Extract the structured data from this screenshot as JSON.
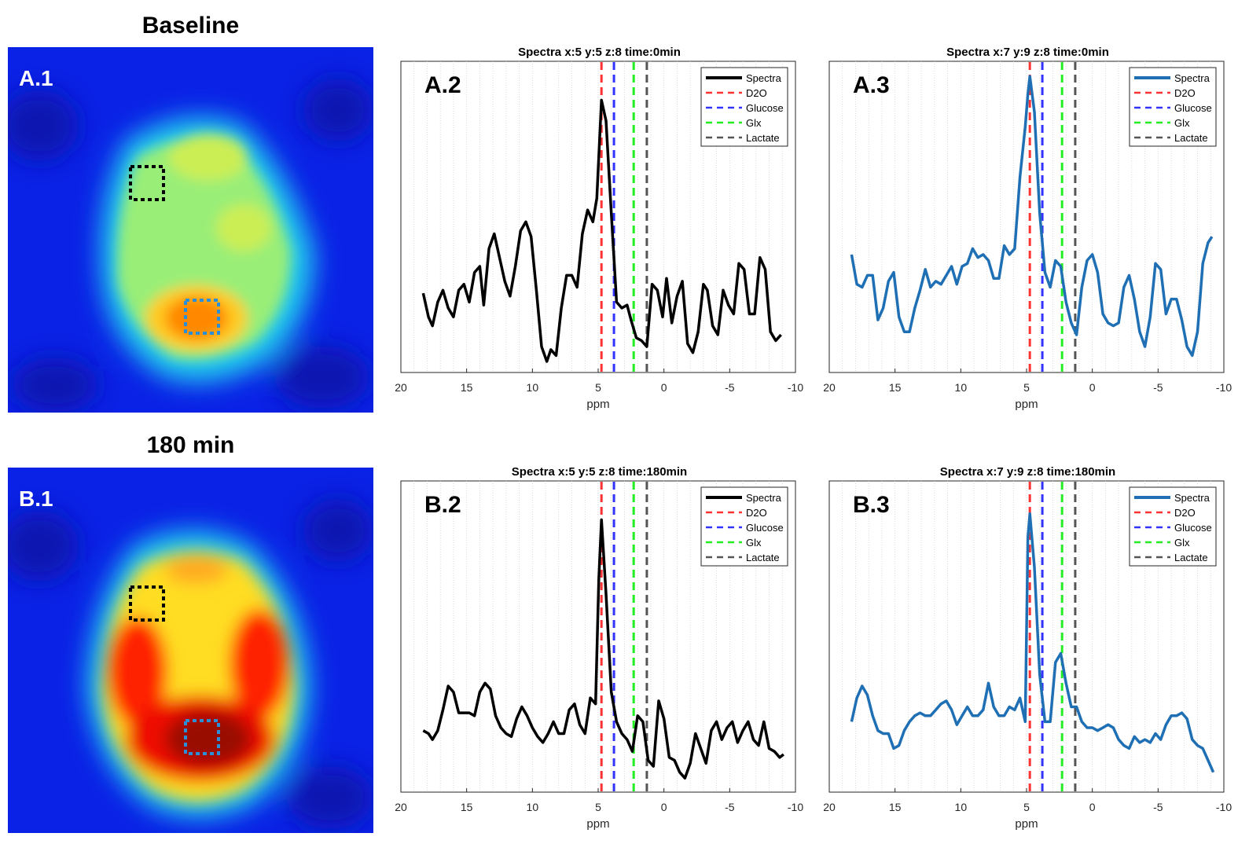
{
  "top_label": "Baseline",
  "bottom_label": "180 min",
  "maps": [
    {
      "panel": "A.1",
      "state": "baseline"
    },
    {
      "panel": "B.1",
      "state": "180min"
    }
  ],
  "colors": {
    "spectra_black": "#000000",
    "spectra_blue": "#1f6fb5",
    "d2o": "#ff3333",
    "glucose": "#3333ff",
    "glx": "#22ee22",
    "lactate": "#555555",
    "roi_black": "#000000",
    "roi_blue": "#2a8fd6"
  },
  "chart_data": [
    {
      "type": "line",
      "panel": "A.2",
      "title": "Spectra x:5 y:5 z:8 time:0min",
      "xlabel": "ppm",
      "ylabel": "",
      "xlim": [
        20,
        -10
      ],
      "xticks": [
        "20",
        "15",
        "10",
        "5",
        "0",
        "-5",
        "-10"
      ],
      "ylim": [
        0,
        1
      ],
      "legend": "top-right",
      "markers": [
        {
          "name": "D2O",
          "ppm": 4.75
        },
        {
          "name": "Glucose",
          "ppm": 3.8
        },
        {
          "name": "Glx",
          "ppm": 2.3
        },
        {
          "name": "Lactate",
          "ppm": 1.3
        }
      ],
      "series": [
        {
          "name": "Spectra",
          "color": "#000000",
          "x": [
            18.3,
            17.9,
            17.6,
            17.2,
            16.8,
            16.4,
            16.0,
            15.6,
            15.2,
            14.8,
            14.4,
            14.0,
            13.7,
            13.3,
            12.9,
            12.5,
            12.1,
            11.7,
            11.3,
            10.9,
            10.5,
            10.1,
            9.7,
            9.3,
            8.9,
            8.6,
            8.2,
            7.8,
            7.4,
            7.0,
            6.6,
            6.2,
            5.8,
            5.4,
            5.1,
            4.75,
            4.4,
            4.0,
            3.6,
            3.2,
            2.8,
            2.5,
            2.1,
            1.7,
            1.3,
            0.9,
            0.5,
            0.1,
            -0.2,
            -0.6,
            -1.0,
            -1.4,
            -1.8,
            -2.2,
            -2.6,
            -3.0,
            -3.3,
            -3.7,
            -4.1,
            -4.5,
            -4.9,
            -5.3,
            -5.7,
            -6.1,
            -6.5,
            -6.9,
            -7.3,
            -7.7,
            -8.1,
            -8.5,
            -8.9
          ],
          "y": [
            0.23,
            0.15,
            0.12,
            0.2,
            0.24,
            0.18,
            0.15,
            0.24,
            0.26,
            0.2,
            0.3,
            0.32,
            0.19,
            0.38,
            0.43,
            0.35,
            0.27,
            0.22,
            0.32,
            0.44,
            0.47,
            0.42,
            0.24,
            0.05,
            0.0,
            0.04,
            0.02,
            0.18,
            0.29,
            0.29,
            0.25,
            0.43,
            0.51,
            0.47,
            0.55,
            0.88,
            0.81,
            0.5,
            0.2,
            0.18,
            0.19,
            0.14,
            0.08,
            0.07,
            0.05,
            0.26,
            0.24,
            0.15,
            0.28,
            0.13,
            0.22,
            0.27,
            0.06,
            0.03,
            0.1,
            0.26,
            0.24,
            0.12,
            0.09,
            0.24,
            0.19,
            0.16,
            0.33,
            0.31,
            0.16,
            0.16,
            0.35,
            0.31,
            0.1,
            0.07,
            0.09
          ]
        }
      ]
    },
    {
      "type": "line",
      "panel": "A.3",
      "title": "Spectra x:7 y:9 z:8 time:0min",
      "xlabel": "ppm",
      "ylabel": "",
      "xlim": [
        20,
        -10
      ],
      "xticks": [
        "20",
        "15",
        "10",
        "5",
        "0",
        "-5",
        "-10"
      ],
      "ylim": [
        0,
        1
      ],
      "legend": "top-right",
      "markers": [
        {
          "name": "D2O",
          "ppm": 4.75
        },
        {
          "name": "Glucose",
          "ppm": 3.8
        },
        {
          "name": "Glx",
          "ppm": 2.3
        },
        {
          "name": "Lactate",
          "ppm": 1.3
        }
      ],
      "series": [
        {
          "name": "Spectra",
          "color": "#1f6fb5",
          "x": [
            18.3,
            17.9,
            17.5,
            17.1,
            16.7,
            16.3,
            15.9,
            15.5,
            15.1,
            14.7,
            14.3,
            13.9,
            13.5,
            13.1,
            12.7,
            12.3,
            11.9,
            11.5,
            11.1,
            10.7,
            10.3,
            9.9,
            9.5,
            9.1,
            8.7,
            8.3,
            7.9,
            7.5,
            7.1,
            6.7,
            6.3,
            5.9,
            5.5,
            5.1,
            4.9,
            4.75,
            4.4,
            4.0,
            3.6,
            3.2,
            2.8,
            2.4,
            2.0,
            1.6,
            1.2,
            0.8,
            0.4,
            0.0,
            -0.4,
            -0.8,
            -1.2,
            -1.6,
            -2.0,
            -2.4,
            -2.8,
            -3.2,
            -3.6,
            -4.0,
            -4.4,
            -4.8,
            -5.2,
            -5.6,
            -6.0,
            -6.4,
            -6.8,
            -7.2,
            -7.6,
            -8.0,
            -8.4,
            -8.8,
            -9.1
          ],
          "y": [
            0.36,
            0.26,
            0.25,
            0.29,
            0.29,
            0.14,
            0.18,
            0.27,
            0.3,
            0.15,
            0.1,
            0.1,
            0.18,
            0.24,
            0.31,
            0.25,
            0.27,
            0.26,
            0.29,
            0.32,
            0.26,
            0.32,
            0.33,
            0.38,
            0.35,
            0.36,
            0.34,
            0.28,
            0.28,
            0.39,
            0.36,
            0.38,
            0.62,
            0.79,
            0.9,
            0.96,
            0.84,
            0.5,
            0.3,
            0.25,
            0.34,
            0.32,
            0.2,
            0.13,
            0.09,
            0.25,
            0.34,
            0.36,
            0.3,
            0.16,
            0.13,
            0.12,
            0.13,
            0.25,
            0.29,
            0.21,
            0.1,
            0.05,
            0.15,
            0.33,
            0.31,
            0.16,
            0.21,
            0.21,
            0.14,
            0.05,
            0.02,
            0.1,
            0.33,
            0.4,
            0.42
          ]
        }
      ]
    },
    {
      "type": "line",
      "panel": "B.2",
      "title": "Spectra x:5 y:5 z:8 time:180min",
      "xlabel": "ppm",
      "ylabel": "",
      "xlim": [
        20,
        -10
      ],
      "xticks": [
        "20",
        "15",
        "10",
        "5",
        "0",
        "-5",
        "-10"
      ],
      "ylim": [
        0,
        1
      ],
      "legend": "top-right",
      "markers": [
        {
          "name": "D2O",
          "ppm": 4.75
        },
        {
          "name": "Glucose",
          "ppm": 3.8
        },
        {
          "name": "Glx",
          "ppm": 2.3
        },
        {
          "name": "Lactate",
          "ppm": 1.3
        }
      ],
      "series": [
        {
          "name": "Spectra",
          "color": "#000000",
          "x": [
            18.3,
            17.9,
            17.6,
            17.2,
            16.8,
            16.4,
            16.0,
            15.6,
            15.2,
            14.8,
            14.4,
            14.0,
            13.6,
            13.2,
            12.8,
            12.4,
            12.0,
            11.6,
            11.2,
            10.8,
            10.4,
            10.0,
            9.6,
            9.2,
            8.8,
            8.4,
            8.0,
            7.6,
            7.2,
            6.8,
            6.4,
            6.0,
            5.6,
            5.2,
            4.95,
            4.75,
            4.4,
            4.0,
            3.6,
            3.2,
            2.8,
            2.4,
            2.0,
            1.6,
            1.2,
            0.8,
            0.4,
            0.0,
            -0.4,
            -0.8,
            -1.2,
            -1.6,
            -2.0,
            -2.4,
            -2.8,
            -3.2,
            -3.6,
            -4.0,
            -4.4,
            -4.8,
            -5.2,
            -5.6,
            -6.0,
            -6.4,
            -6.8,
            -7.2,
            -7.6,
            -8.0,
            -8.4,
            -8.8,
            -9.1
          ],
          "y": [
            0.17,
            0.16,
            0.14,
            0.17,
            0.24,
            0.32,
            0.3,
            0.23,
            0.23,
            0.23,
            0.22,
            0.3,
            0.33,
            0.31,
            0.22,
            0.18,
            0.16,
            0.15,
            0.21,
            0.25,
            0.22,
            0.18,
            0.15,
            0.13,
            0.16,
            0.2,
            0.16,
            0.16,
            0.24,
            0.26,
            0.19,
            0.16,
            0.28,
            0.26,
            0.68,
            0.88,
            0.63,
            0.3,
            0.2,
            0.16,
            0.14,
            0.1,
            0.22,
            0.2,
            0.07,
            0.05,
            0.27,
            0.21,
            0.08,
            0.07,
            0.03,
            0.01,
            0.06,
            0.16,
            0.11,
            0.06,
            0.17,
            0.2,
            0.14,
            0.18,
            0.2,
            0.13,
            0.17,
            0.2,
            0.14,
            0.12,
            0.2,
            0.11,
            0.1,
            0.08,
            0.09
          ]
        }
      ]
    },
    {
      "type": "line",
      "panel": "B.3",
      "title": "Spectra x:7 y:9 z:8 time:180min",
      "xlabel": "ppm",
      "ylabel": "",
      "xlim": [
        20,
        -10
      ],
      "xticks": [
        "20",
        "15",
        "10",
        "5",
        "0",
        "-5",
        "-10"
      ],
      "ylim": [
        0,
        1
      ],
      "legend": "top-right",
      "markers": [
        {
          "name": "D2O",
          "ppm": 4.75
        },
        {
          "name": "Glucose",
          "ppm": 3.8
        },
        {
          "name": "Glx",
          "ppm": 2.3
        },
        {
          "name": "Lactate",
          "ppm": 1.3
        }
      ],
      "series": [
        {
          "name": "Spectra",
          "color": "#1f6fb5",
          "x": [
            18.3,
            17.9,
            17.5,
            17.1,
            16.7,
            16.3,
            15.9,
            15.5,
            15.1,
            14.7,
            14.3,
            13.9,
            13.5,
            13.1,
            12.7,
            12.3,
            11.9,
            11.5,
            11.1,
            10.7,
            10.3,
            9.9,
            9.5,
            9.1,
            8.7,
            8.3,
            7.9,
            7.5,
            7.1,
            6.7,
            6.3,
            5.9,
            5.5,
            5.1,
            4.9,
            4.75,
            4.4,
            4.0,
            3.6,
            3.2,
            2.8,
            2.4,
            2.0,
            1.6,
            1.2,
            0.8,
            0.4,
            0.0,
            -0.4,
            -0.8,
            -1.2,
            -1.6,
            -2.0,
            -2.4,
            -2.8,
            -3.2,
            -3.6,
            -4.0,
            -4.4,
            -4.8,
            -5.2,
            -5.6,
            -6.0,
            -6.4,
            -6.8,
            -7.2,
            -7.6,
            -8.0,
            -8.4,
            -8.8,
            -9.2
          ],
          "y": [
            0.2,
            0.28,
            0.32,
            0.29,
            0.22,
            0.17,
            0.16,
            0.16,
            0.11,
            0.12,
            0.17,
            0.2,
            0.22,
            0.23,
            0.22,
            0.22,
            0.24,
            0.26,
            0.27,
            0.24,
            0.19,
            0.22,
            0.25,
            0.22,
            0.22,
            0.24,
            0.33,
            0.25,
            0.22,
            0.22,
            0.25,
            0.24,
            0.28,
            0.2,
            0.82,
            0.9,
            0.72,
            0.36,
            0.2,
            0.2,
            0.4,
            0.43,
            0.33,
            0.25,
            0.25,
            0.2,
            0.18,
            0.18,
            0.17,
            0.18,
            0.19,
            0.18,
            0.14,
            0.12,
            0.11,
            0.15,
            0.13,
            0.14,
            0.13,
            0.16,
            0.14,
            0.19,
            0.22,
            0.22,
            0.23,
            0.21,
            0.14,
            0.12,
            0.11,
            0.07,
            0.03
          ]
        }
      ]
    }
  ]
}
